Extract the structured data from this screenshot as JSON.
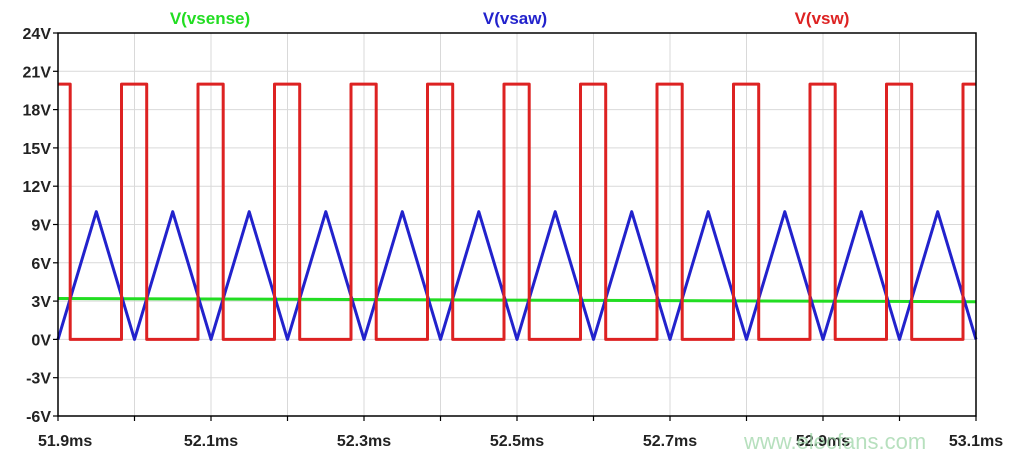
{
  "chart_data": {
    "type": "line",
    "title": "",
    "xlabel": "",
    "ylabel": "",
    "xlim": [
      51.9,
      53.1
    ],
    "ylim": [
      -6,
      24
    ],
    "grid": true,
    "legend_placement": "top",
    "x_ticks": [
      "51.9ms",
      "52.1ms",
      "52.3ms",
      "52.5ms",
      "52.7ms",
      "52.9ms",
      "53.1ms"
    ],
    "x_tick_values": [
      51.9,
      52.1,
      52.3,
      52.5,
      52.7,
      52.9,
      53.1
    ],
    "y_ticks": [
      "-6V",
      "-3V",
      "0V",
      "3V",
      "6V",
      "9V",
      "12V",
      "15V",
      "18V",
      "21V",
      "24V"
    ],
    "y_tick_values": [
      -6,
      -3,
      0,
      3,
      6,
      9,
      12,
      15,
      18,
      21,
      24
    ],
    "series": [
      {
        "name": "V(vsense)",
        "color": "#22dd22",
        "x": [
          51.9,
          53.1
        ],
        "y": [
          3.2,
          2.95
        ]
      },
      {
        "name": "V(vsaw)",
        "color": "#2222cc",
        "x": [
          51.9,
          51.95,
          52.0,
          52.05,
          52.1,
          52.15,
          52.2,
          52.25,
          52.3,
          52.35,
          52.4,
          52.45,
          52.5,
          52.55,
          52.6,
          52.65,
          52.7,
          52.75,
          52.8,
          52.85,
          52.9,
          52.95,
          53.0,
          53.05,
          53.1
        ],
        "y": [
          0,
          10,
          0,
          10,
          0,
          10,
          0,
          10,
          0,
          10,
          0,
          10,
          0,
          10,
          0,
          10,
          0,
          10,
          0,
          10,
          0,
          10,
          0,
          10,
          0
        ]
      },
      {
        "name": "V(vsw)",
        "color": "#dd2222",
        "x": [
          51.9,
          51.916,
          51.916,
          51.983,
          51.983,
          52.016,
          52.016,
          52.083,
          52.083,
          52.116,
          52.116,
          52.183,
          52.183,
          52.216,
          52.216,
          52.283,
          52.283,
          52.316,
          52.316,
          52.383,
          52.383,
          52.416,
          52.416,
          52.483,
          52.483,
          52.516,
          52.516,
          52.583,
          52.583,
          52.616,
          52.616,
          52.683,
          52.683,
          52.716,
          52.716,
          52.783,
          52.783,
          52.816,
          52.816,
          52.883,
          52.883,
          52.916,
          52.916,
          52.983,
          52.983,
          53.016,
          53.016,
          53.083,
          53.083,
          53.1
        ],
        "y": [
          20,
          20,
          0,
          0,
          20,
          20,
          0,
          0,
          20,
          20,
          0,
          0,
          20,
          20,
          0,
          0,
          20,
          20,
          0,
          0,
          20,
          20,
          0,
          0,
          20,
          20,
          0,
          0,
          20,
          20,
          0,
          0,
          20,
          20,
          0,
          0,
          20,
          20,
          0,
          0,
          20,
          20,
          0,
          0,
          20,
          20,
          0,
          0,
          20,
          20
        ]
      }
    ]
  },
  "watermark": "www.elecfans.com"
}
